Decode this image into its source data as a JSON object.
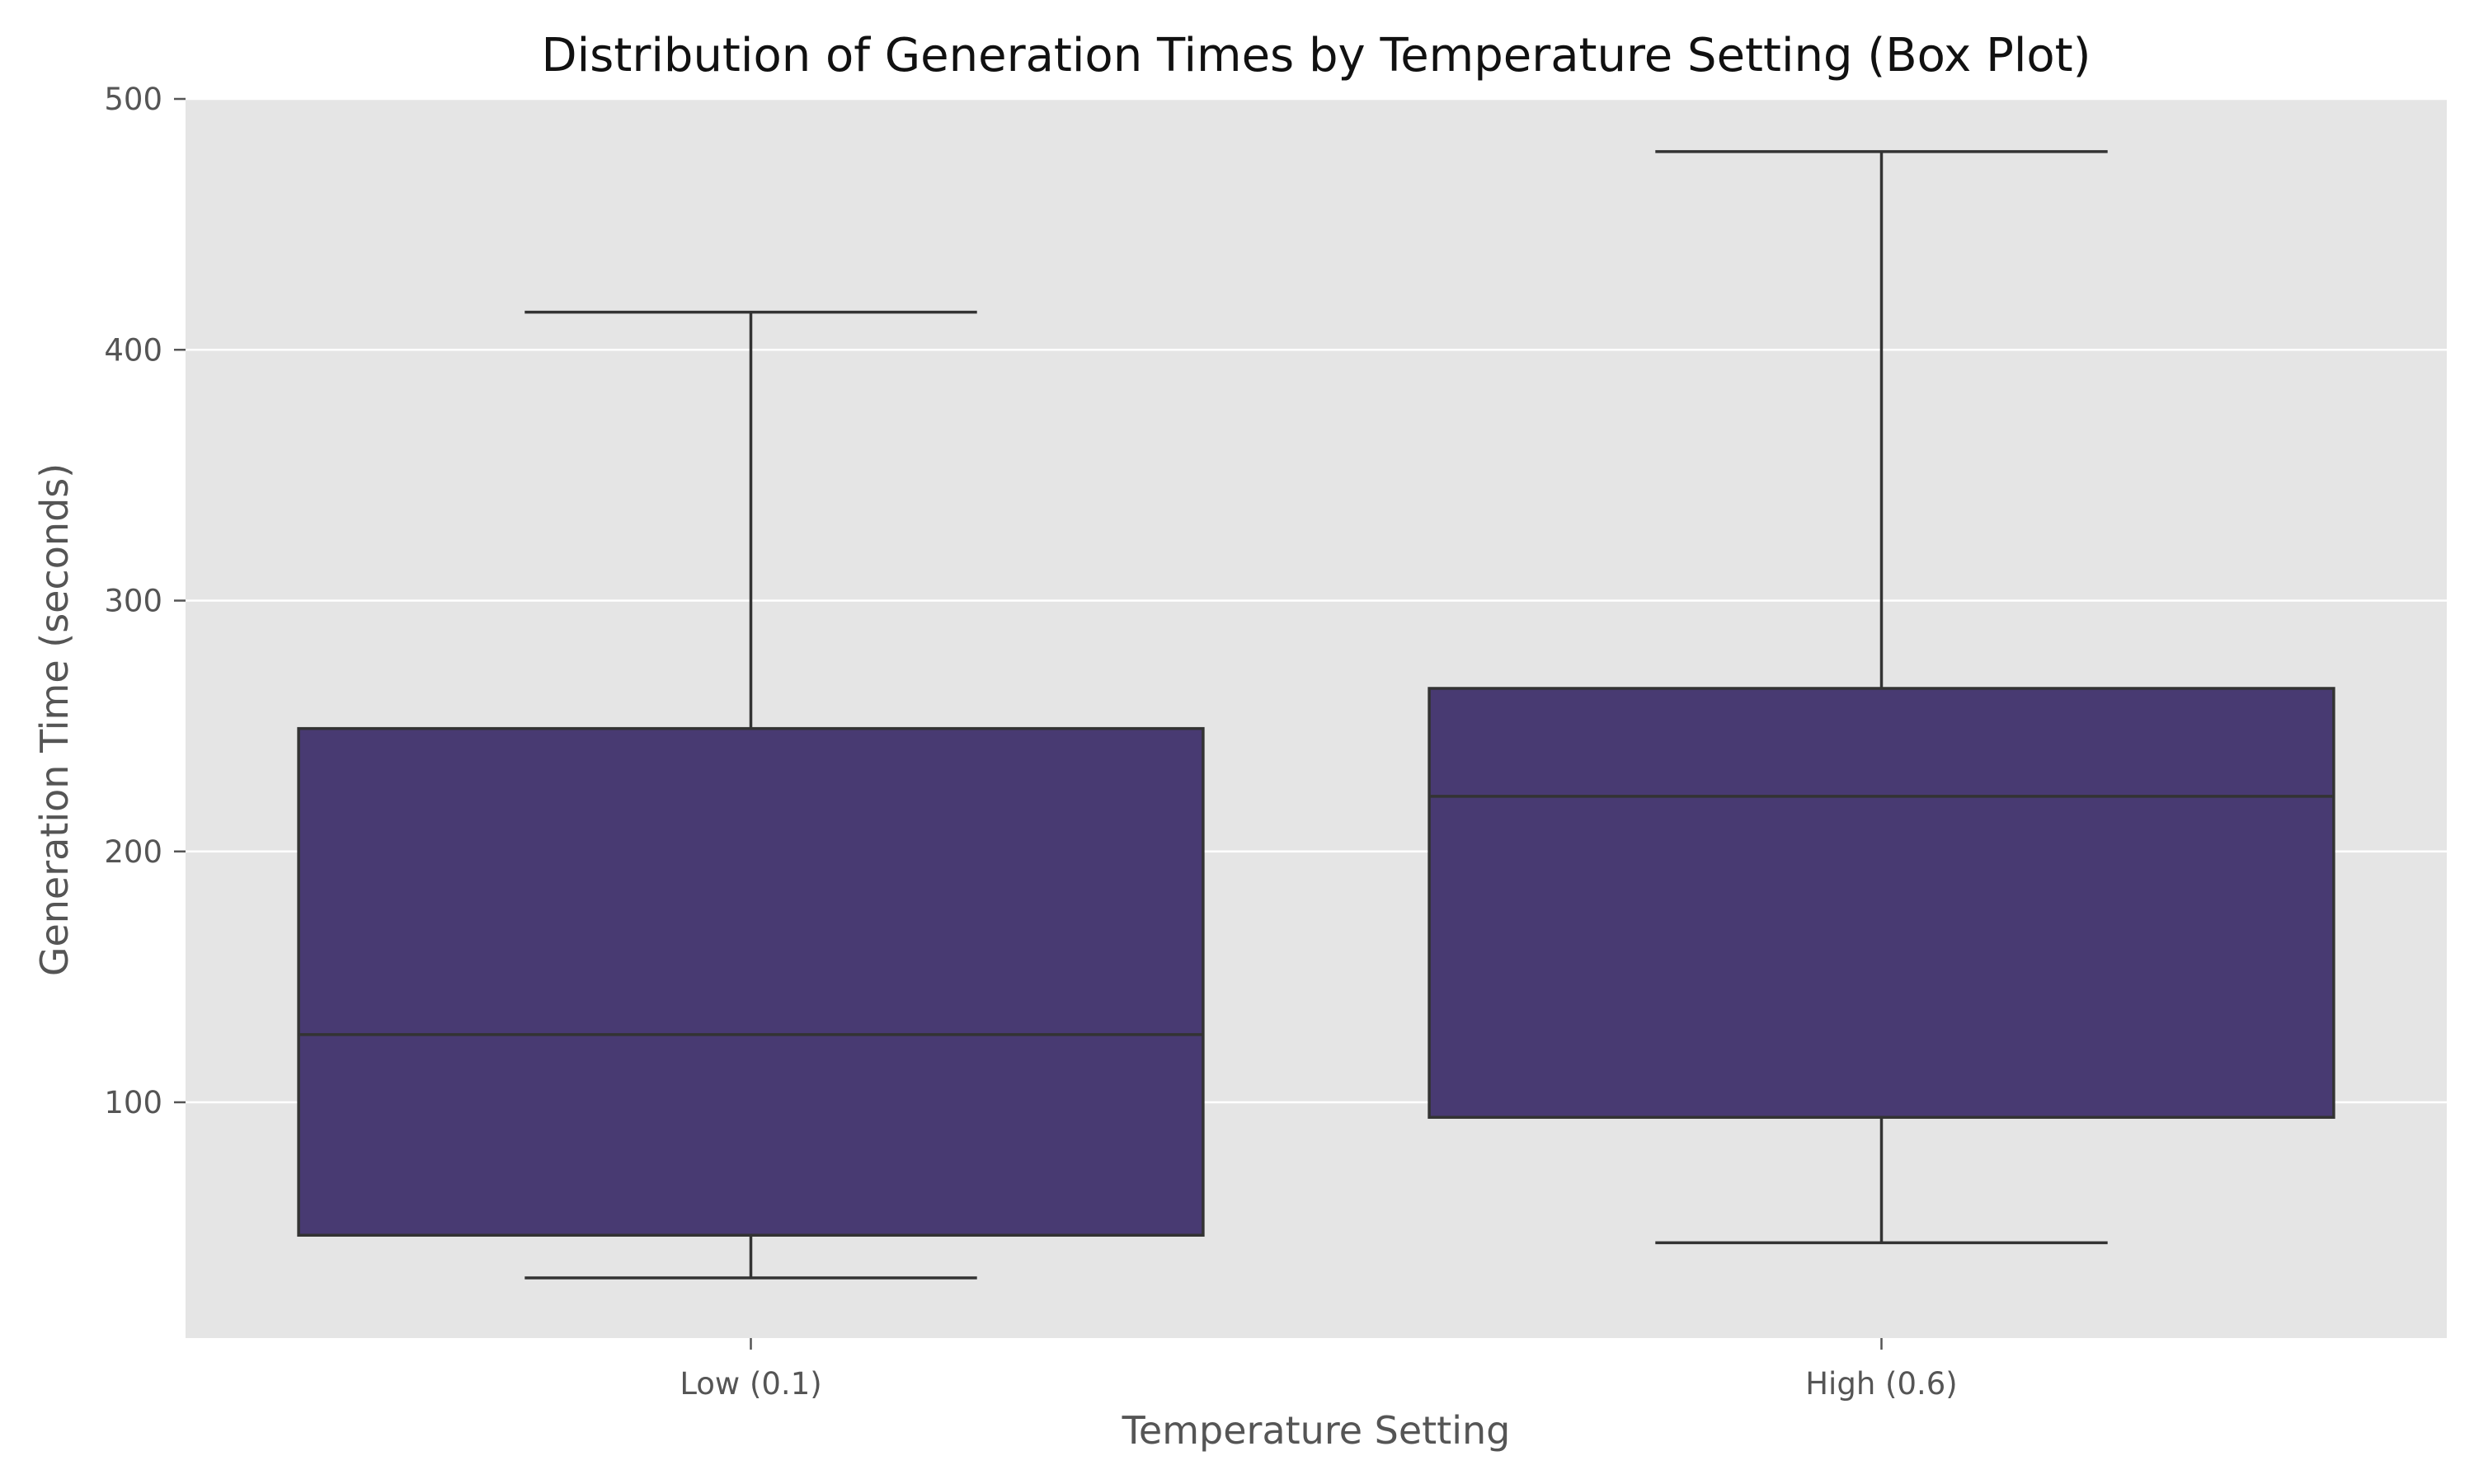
{
  "chart_data": {
    "type": "box",
    "title": "Distribution of Generation Times by Temperature Setting (Box Plot)",
    "xlabel": "Temperature Setting",
    "ylabel": "Generation Time (seconds)",
    "ylim": [
      6,
      500
    ],
    "yticks": [
      100,
      200,
      300,
      400,
      500
    ],
    "grid": true,
    "categories": [
      "Low (0.1)",
      "High (0.6)"
    ],
    "boxes": [
      {
        "category": "Low (0.1)",
        "whisker_low": 30,
        "q1": 47,
        "median": 127,
        "q3": 249,
        "whisker_high": 415
      },
      {
        "category": "High (0.6)",
        "whisker_low": 44,
        "q1": 94,
        "median": 222,
        "q3": 265,
        "whisker_high": 479
      }
    ],
    "colors": {
      "box_fill": "#483a72",
      "box_edge": "#333333",
      "plot_background": "#e5e5e5",
      "grid": "#ffffff"
    }
  }
}
